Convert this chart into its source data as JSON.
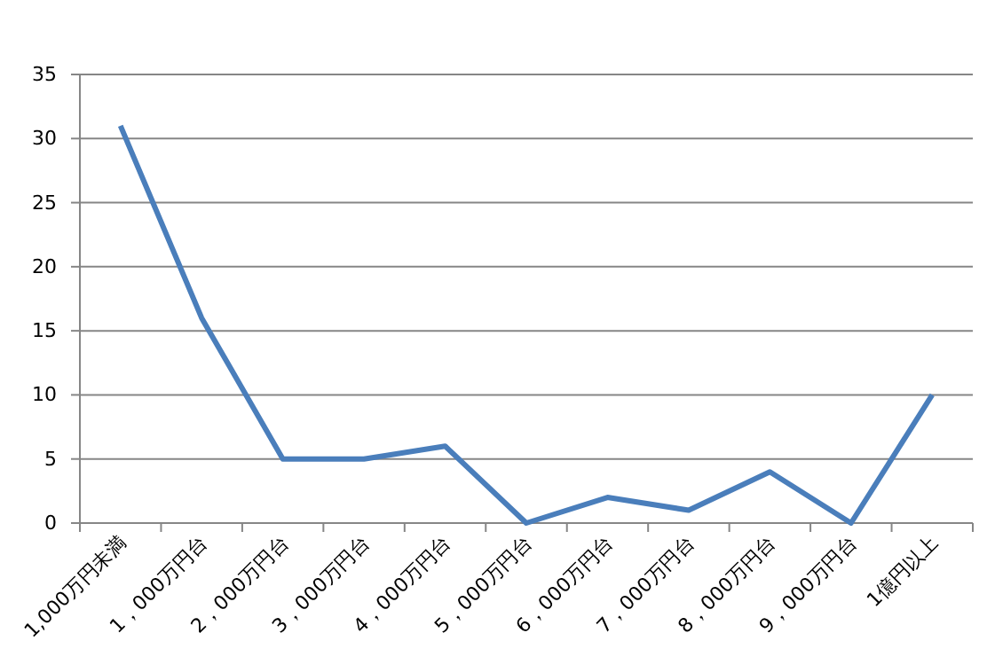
{
  "chart_data": {
    "type": "line",
    "categories": [
      "1,000万円未満",
      "1，000万円台",
      "2，000万円台",
      "3，000万円台",
      "4，000万円台",
      "5，000万円台",
      "6，000万円台",
      "7，000万円台",
      "8，000万円台",
      "9，000万円台",
      "1億円以上"
    ],
    "series": [
      {
        "color": "#4a7ebb",
        "values": [
          31,
          16,
          5,
          5,
          6,
          0,
          2,
          1,
          4,
          0,
          10
        ]
      }
    ],
    "ylim": [
      0,
      35
    ],
    "yticks": [
      0,
      5,
      10,
      15,
      20,
      25,
      30,
      35
    ],
    "grid": "y",
    "marker": "none",
    "line_style": "solid"
  }
}
